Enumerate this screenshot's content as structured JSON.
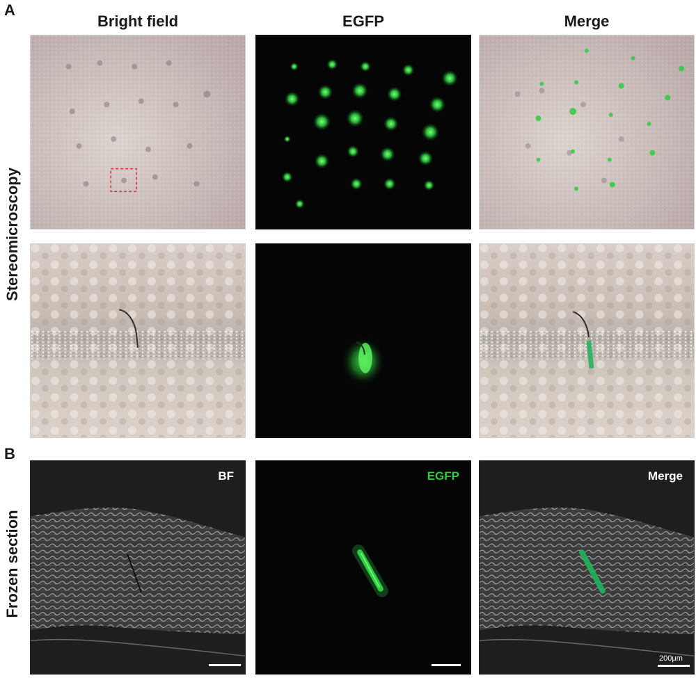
{
  "panel_labels": {
    "a": "A",
    "b": "B"
  },
  "columns": {
    "bright_field": "Bright field",
    "egfp": "EGFP",
    "merge": "Merge"
  },
  "rows": {
    "stereomicroscopy": "Stereomicroscopy",
    "frozen_section": "Frozen section"
  },
  "section_overlays": {
    "bf": "BF",
    "egfp": "EGFP",
    "merge": "Merge"
  },
  "scale_bar": {
    "label": "200μm"
  },
  "colors": {
    "egfp_green": "#2ecc40",
    "overlay_green": "#1fb35a",
    "skin": "#c9bcb6",
    "dark": "#050505"
  }
}
